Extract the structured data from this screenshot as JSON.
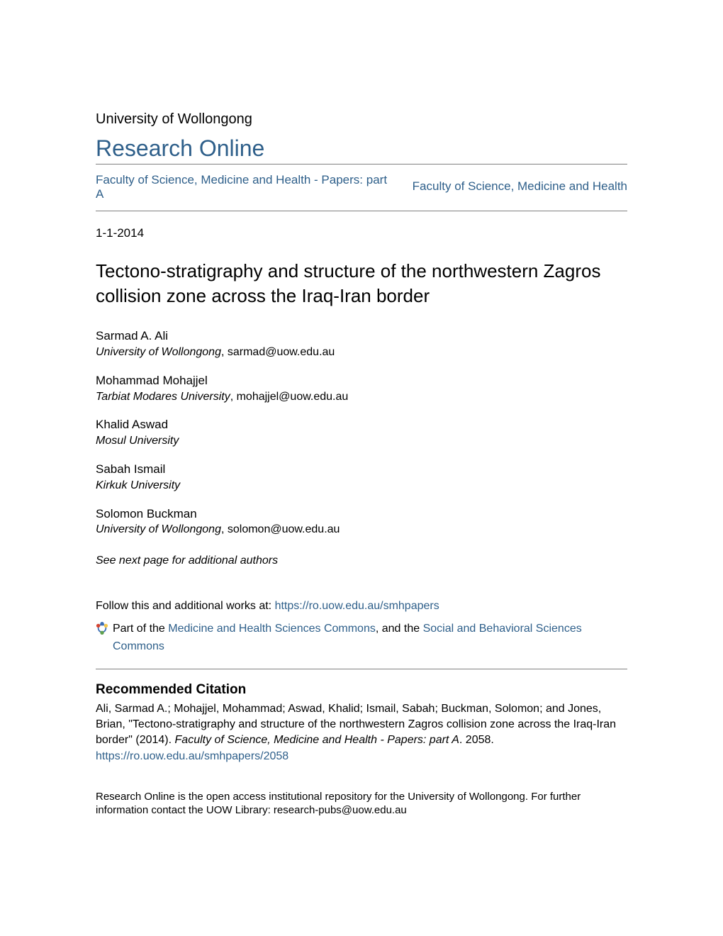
{
  "header": {
    "institution": "University of Wollongong",
    "repository_name": "Research Online"
  },
  "nav": {
    "left_link": "Faculty of Science, Medicine and Health - Papers: part A",
    "right_link": "Faculty of Science, Medicine and Health"
  },
  "date": "1-1-2014",
  "title": "Tectono-stratigraphy and structure of the northwestern Zagros collision zone across the Iraq-Iran border",
  "authors": [
    {
      "name": "Sarmad A. Ali",
      "affiliation": "University of Wollongong",
      "email": "sarmad@uow.edu.au"
    },
    {
      "name": "Mohammad Mohajjel",
      "affiliation": "Tarbiat Modares University",
      "email": "mohajjel@uow.edu.au"
    },
    {
      "name": "Khalid Aswad",
      "affiliation": "Mosul University",
      "email": ""
    },
    {
      "name": "Sabah Ismail",
      "affiliation": "Kirkuk University",
      "email": ""
    },
    {
      "name": "Solomon Buckman",
      "affiliation": "University of Wollongong",
      "email": "solomon@uow.edu.au"
    }
  ],
  "see_next": "See next page for additional authors",
  "follow": {
    "prefix": "Follow this and additional works at: ",
    "url": "https://ro.uow.edu.au/smhpapers"
  },
  "partof": {
    "prefix": "Part of the ",
    "link1": "Medicine and Health Sciences Commons",
    "mid": ", and the ",
    "link2": "Social and Behavioral Sciences Commons"
  },
  "citation": {
    "heading": "Recommended Citation",
    "text_a": "Ali, Sarmad A.; Mohajjel, Mohammad; Aswad, Khalid; Ismail, Sabah; Buckman, Solomon; and Jones, Brian, \"Tectono-stratigraphy and structure of the northwestern Zagros collision zone across the Iraq-Iran border\" (2014). ",
    "text_ital": "Faculty of Science, Medicine and Health - Papers: part A",
    "text_b": ". 2058.",
    "permalink": "https://ro.uow.edu.au/smhpapers/2058"
  },
  "footer": "Research Online is the open access institutional repository for the University of Wollongong. For further information contact the UOW Library: research-pubs@uow.edu.au",
  "colors": {
    "link": "#2e5f8a",
    "text": "#000000",
    "divider": "#808080",
    "icon_blue": "#3d6fb6",
    "icon_red": "#d6432f",
    "icon_yellow": "#f5c84c",
    "icon_green": "#5fa04e"
  }
}
